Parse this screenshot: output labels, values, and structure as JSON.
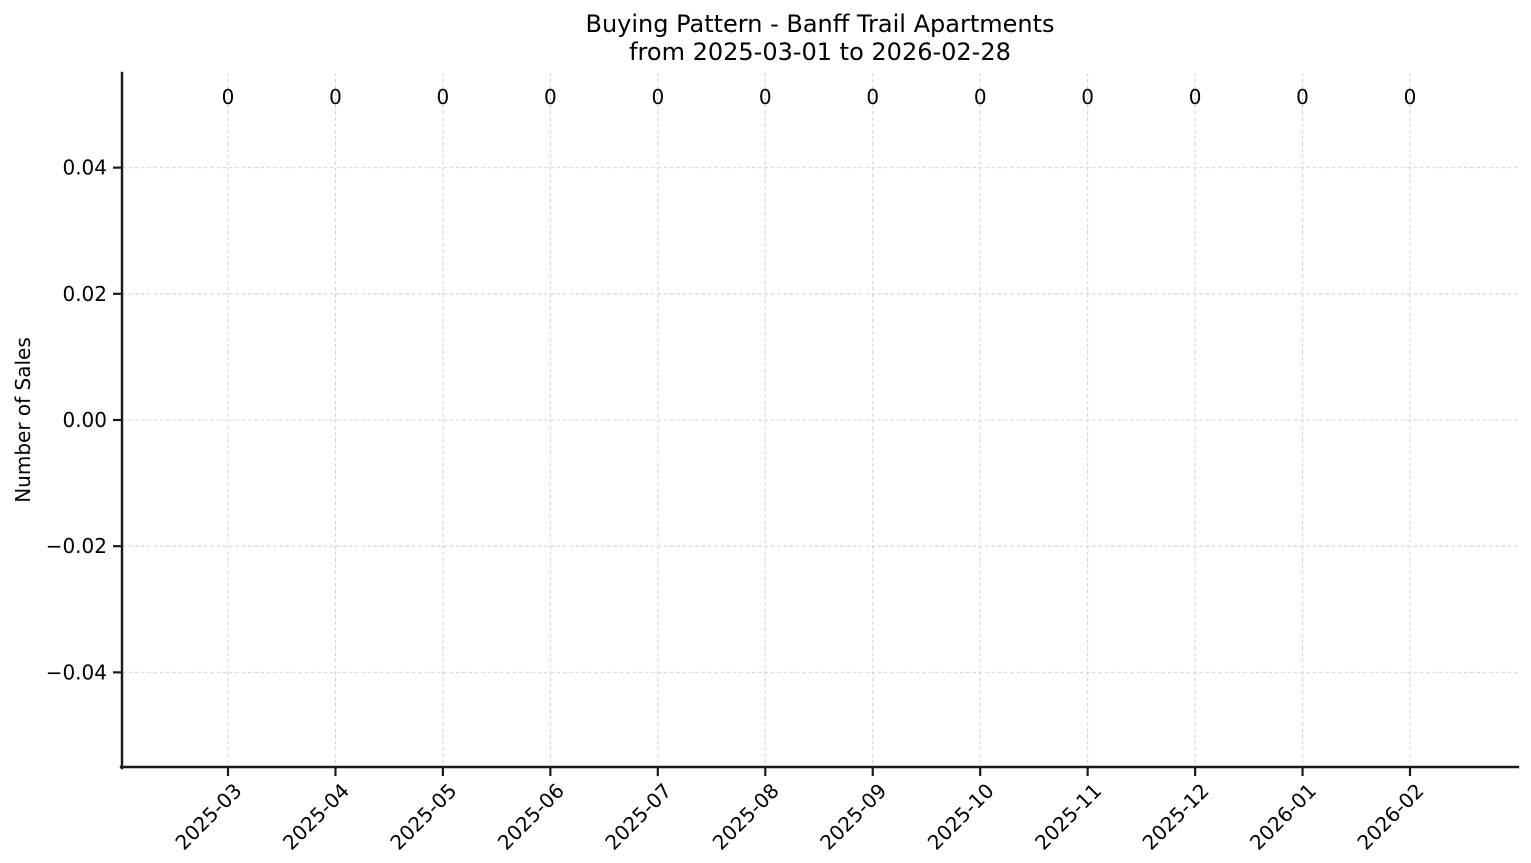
{
  "chart_data": {
    "type": "bar",
    "title": "Buying Pattern - Banff Trail Apartments",
    "subtitle": "from 2025-03-01 to 2026-02-28",
    "categories": [
      "2025-03",
      "2025-04",
      "2025-05",
      "2025-06",
      "2025-07",
      "2025-08",
      "2025-09",
      "2025-10",
      "2025-11",
      "2025-12",
      "2026-01",
      "2026-02"
    ],
    "values": [
      0,
      0,
      0,
      0,
      0,
      0,
      0,
      0,
      0,
      0,
      0,
      0
    ],
    "bar_value_labels": [
      "0",
      "0",
      "0",
      "0",
      "0",
      "0",
      "0",
      "0",
      "0",
      "0",
      "0",
      "0"
    ],
    "xlabel": "",
    "ylabel": "Number of Sales",
    "ylim": [
      -0.055,
      0.055
    ],
    "yticks": [
      {
        "value": 0.04,
        "label": "0.04"
      },
      {
        "value": 0.02,
        "label": "0.02"
      },
      {
        "value": 0.0,
        "label": "0.00"
      },
      {
        "value": -0.02,
        "label": "−0.02"
      },
      {
        "value": -0.04,
        "label": "−0.04"
      }
    ],
    "grid": true,
    "grid_style": "dashed",
    "legend": false,
    "x_tick_rotation_deg": 45,
    "colors": {
      "background": "#ffffff",
      "grid": "#d4d4d4",
      "spine": "#1a1a1a",
      "text": "#000000"
    }
  }
}
